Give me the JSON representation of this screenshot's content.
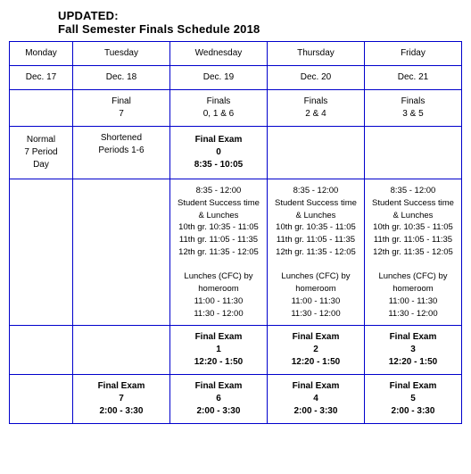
{
  "title": {
    "line1": "UPDATED:",
    "line2": "Fall Semester Finals Schedule 2018"
  },
  "table": {
    "columns": [
      {
        "name": "monday",
        "width_class": "col-mon"
      },
      {
        "name": "tuesday",
        "width_class": "col-other"
      },
      {
        "name": "wednesday",
        "width_class": "col-other"
      },
      {
        "name": "thursday",
        "width_class": "col-other"
      },
      {
        "name": "friday",
        "width_class": "col-other"
      }
    ],
    "header": {
      "mon": "Monday",
      "tue": "Tuesday",
      "wed": "Wednesday",
      "thu": "Thursday",
      "fri": "Friday"
    },
    "dates": {
      "mon": "Dec. 17",
      "tue": "Dec. 18",
      "wed": "Dec. 19",
      "thu": "Dec. 20",
      "fri": "Dec. 21"
    },
    "summary": {
      "tue": {
        "l1": "Final",
        "l2": "7"
      },
      "wed": {
        "l1": "Finals",
        "l2": "0, 1 & 6"
      },
      "thu": {
        "l1": "Finals",
        "l2": "2 & 4"
      },
      "fri": {
        "l1": "Finals",
        "l2": "3 & 5"
      }
    },
    "row4": {
      "mon": {
        "l1": "Normal",
        "l2": "7 Period",
        "l3": "Day"
      },
      "tue": {
        "l1": "Shortened",
        "l2": "Periods 1-6"
      },
      "wed": {
        "l1": "Final Exam",
        "l2": "0",
        "l3": "8:35 - 10:05"
      }
    },
    "lunch": {
      "header1": "8:35 - 12:00",
      "header2": "Student Success time",
      "header3": "& Lunches",
      "g10": "10th gr. 10:35 - 11:05",
      "g11": "11th gr. 11:05 - 11:35",
      "g12": "12th gr. 11:35 - 12:05",
      "cfc1": "Lunches (CFC) by",
      "cfc2": "homeroom",
      "slot1": "11:00 - 11:30",
      "slot2": "11:30 - 12:00"
    },
    "row6": {
      "wed": {
        "l1": "Final Exam",
        "l2": "1",
        "l3": "12:20 - 1:50"
      },
      "thu": {
        "l1": "Final Exam",
        "l2": "2",
        "l3": "12:20 - 1:50"
      },
      "fri": {
        "l1": "Final Exam",
        "l2": "3",
        "l3": "12:20 - 1:50"
      }
    },
    "row7": {
      "tue": {
        "l1": "Final Exam",
        "l2": "7",
        "l3": "2:00 - 3:30"
      },
      "wed": {
        "l1": "Final Exam",
        "l2": "6",
        "l3": "2:00 - 3:30"
      },
      "thu": {
        "l1": "Final Exam",
        "l2": "4",
        "l3": "2:00 - 3:30"
      },
      "fri": {
        "l1": "Final Exam",
        "l2": "5",
        "l3": "2:00 - 3:30"
      }
    }
  },
  "colors": {
    "border": "#0000cc",
    "background": "#ffffff",
    "text": "#000000"
  }
}
